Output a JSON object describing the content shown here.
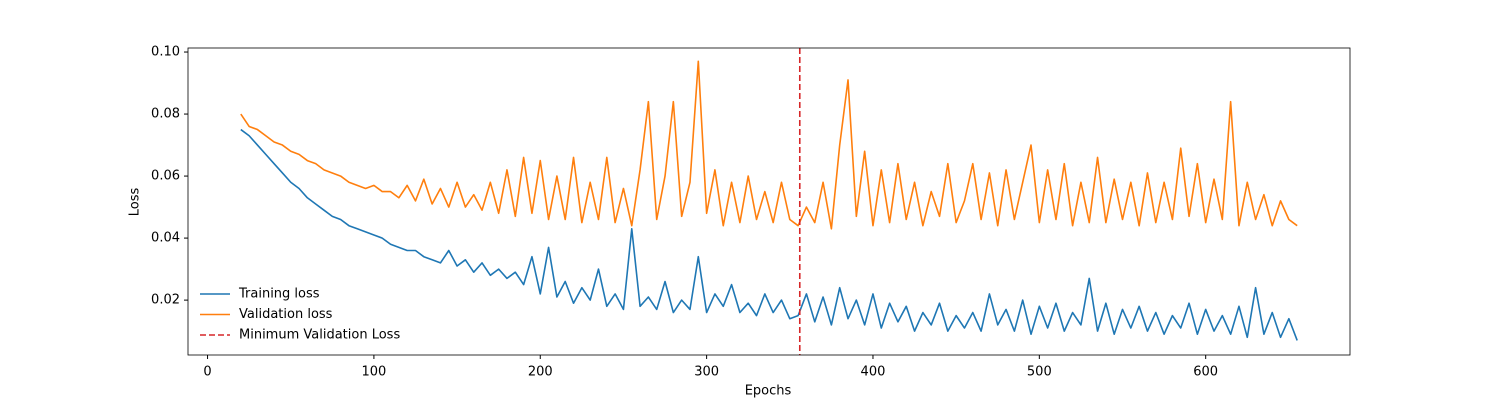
{
  "chart_data": {
    "type": "line",
    "x_label": "Epochs",
    "y_label": "Loss",
    "x": [
      20,
      25,
      30,
      35,
      40,
      45,
      50,
      55,
      60,
      65,
      70,
      75,
      80,
      85,
      90,
      95,
      100,
      105,
      110,
      115,
      120,
      125,
      130,
      135,
      140,
      145,
      150,
      155,
      160,
      165,
      170,
      175,
      180,
      185,
      190,
      195,
      200,
      205,
      210,
      215,
      220,
      225,
      230,
      235,
      240,
      245,
      250,
      255,
      260,
      265,
      270,
      275,
      280,
      285,
      290,
      295,
      300,
      305,
      310,
      315,
      320,
      325,
      330,
      335,
      340,
      345,
      350,
      355,
      360,
      365,
      370,
      375,
      380,
      385,
      390,
      395,
      400,
      405,
      410,
      415,
      420,
      425,
      430,
      435,
      440,
      445,
      450,
      455,
      460,
      465,
      470,
      475,
      480,
      485,
      490,
      495,
      500,
      505,
      510,
      515,
      520,
      525,
      530,
      535,
      540,
      545,
      550,
      555,
      560,
      565,
      570,
      575,
      580,
      585,
      590,
      595,
      600,
      605,
      610,
      615,
      620,
      625,
      630,
      635,
      640,
      645,
      650,
      655
    ],
    "series": [
      {
        "name": "Training loss",
        "color": "#1f77b4",
        "values": [
          0.075,
          0.073,
          0.07,
          0.067,
          0.064,
          0.061,
          0.058,
          0.056,
          0.053,
          0.051,
          0.049,
          0.047,
          0.046,
          0.044,
          0.043,
          0.042,
          0.041,
          0.04,
          0.038,
          0.037,
          0.036,
          0.036,
          0.034,
          0.033,
          0.032,
          0.036,
          0.031,
          0.033,
          0.029,
          0.032,
          0.028,
          0.03,
          0.027,
          0.029,
          0.025,
          0.034,
          0.022,
          0.037,
          0.021,
          0.026,
          0.019,
          0.024,
          0.02,
          0.03,
          0.018,
          0.022,
          0.017,
          0.043,
          0.018,
          0.021,
          0.017,
          0.026,
          0.016,
          0.02,
          0.017,
          0.034,
          0.016,
          0.022,
          0.018,
          0.025,
          0.016,
          0.019,
          0.015,
          0.022,
          0.016,
          0.02,
          0.014,
          0.015,
          0.022,
          0.013,
          0.021,
          0.012,
          0.024,
          0.014,
          0.02,
          0.012,
          0.022,
          0.011,
          0.019,
          0.013,
          0.018,
          0.01,
          0.016,
          0.012,
          0.019,
          0.01,
          0.015,
          0.011,
          0.016,
          0.01,
          0.022,
          0.012,
          0.017,
          0.01,
          0.02,
          0.009,
          0.018,
          0.011,
          0.019,
          0.01,
          0.016,
          0.012,
          0.027,
          0.01,
          0.019,
          0.009,
          0.017,
          0.011,
          0.018,
          0.01,
          0.016,
          0.009,
          0.015,
          0.011,
          0.019,
          0.009,
          0.017,
          0.01,
          0.015,
          0.009,
          0.018,
          0.008,
          0.024,
          0.009,
          0.016,
          0.008,
          0.014,
          0.007
        ]
      },
      {
        "name": "Validation loss",
        "color": "#ff7f0e",
        "values": [
          0.08,
          0.076,
          0.075,
          0.073,
          0.071,
          0.07,
          0.068,
          0.067,
          0.065,
          0.064,
          0.062,
          0.061,
          0.06,
          0.058,
          0.057,
          0.056,
          0.057,
          0.055,
          0.055,
          0.053,
          0.057,
          0.052,
          0.059,
          0.051,
          0.056,
          0.05,
          0.058,
          0.05,
          0.054,
          0.049,
          0.058,
          0.048,
          0.062,
          0.047,
          0.066,
          0.048,
          0.065,
          0.046,
          0.06,
          0.046,
          0.066,
          0.045,
          0.058,
          0.046,
          0.066,
          0.045,
          0.056,
          0.044,
          0.062,
          0.084,
          0.046,
          0.06,
          0.084,
          0.047,
          0.058,
          0.097,
          0.048,
          0.062,
          0.044,
          0.058,
          0.045,
          0.06,
          0.046,
          0.055,
          0.045,
          0.058,
          0.046,
          0.044,
          0.05,
          0.045,
          0.058,
          0.043,
          0.07,
          0.091,
          0.047,
          0.068,
          0.044,
          0.062,
          0.045,
          0.064,
          0.046,
          0.058,
          0.044,
          0.055,
          0.047,
          0.064,
          0.045,
          0.052,
          0.064,
          0.046,
          0.061,
          0.044,
          0.062,
          0.046,
          0.058,
          0.07,
          0.045,
          0.062,
          0.046,
          0.064,
          0.044,
          0.058,
          0.045,
          0.066,
          0.045,
          0.059,
          0.046,
          0.058,
          0.044,
          0.061,
          0.045,
          0.058,
          0.046,
          0.069,
          0.047,
          0.064,
          0.045,
          0.059,
          0.046,
          0.084,
          0.044,
          0.058,
          0.046,
          0.054,
          0.044,
          0.052,
          0.046,
          0.044
        ]
      }
    ],
    "vlines": [
      {
        "x": 356,
        "name": "Minimum Validation Loss",
        "color": "#d62728",
        "style": "dashed"
      }
    ],
    "xlim": [
      -11.75,
      686.75
    ],
    "xticks": [
      0,
      100,
      200,
      300,
      400,
      500,
      600
    ],
    "ylim": [
      0.0023,
      0.1013
    ],
    "yticks": [
      0.02,
      0.04,
      0.06,
      0.08,
      {
        "value": 0.1,
        "label": "0.10"
      }
    ],
    "grid": false,
    "legend": "lower left"
  }
}
